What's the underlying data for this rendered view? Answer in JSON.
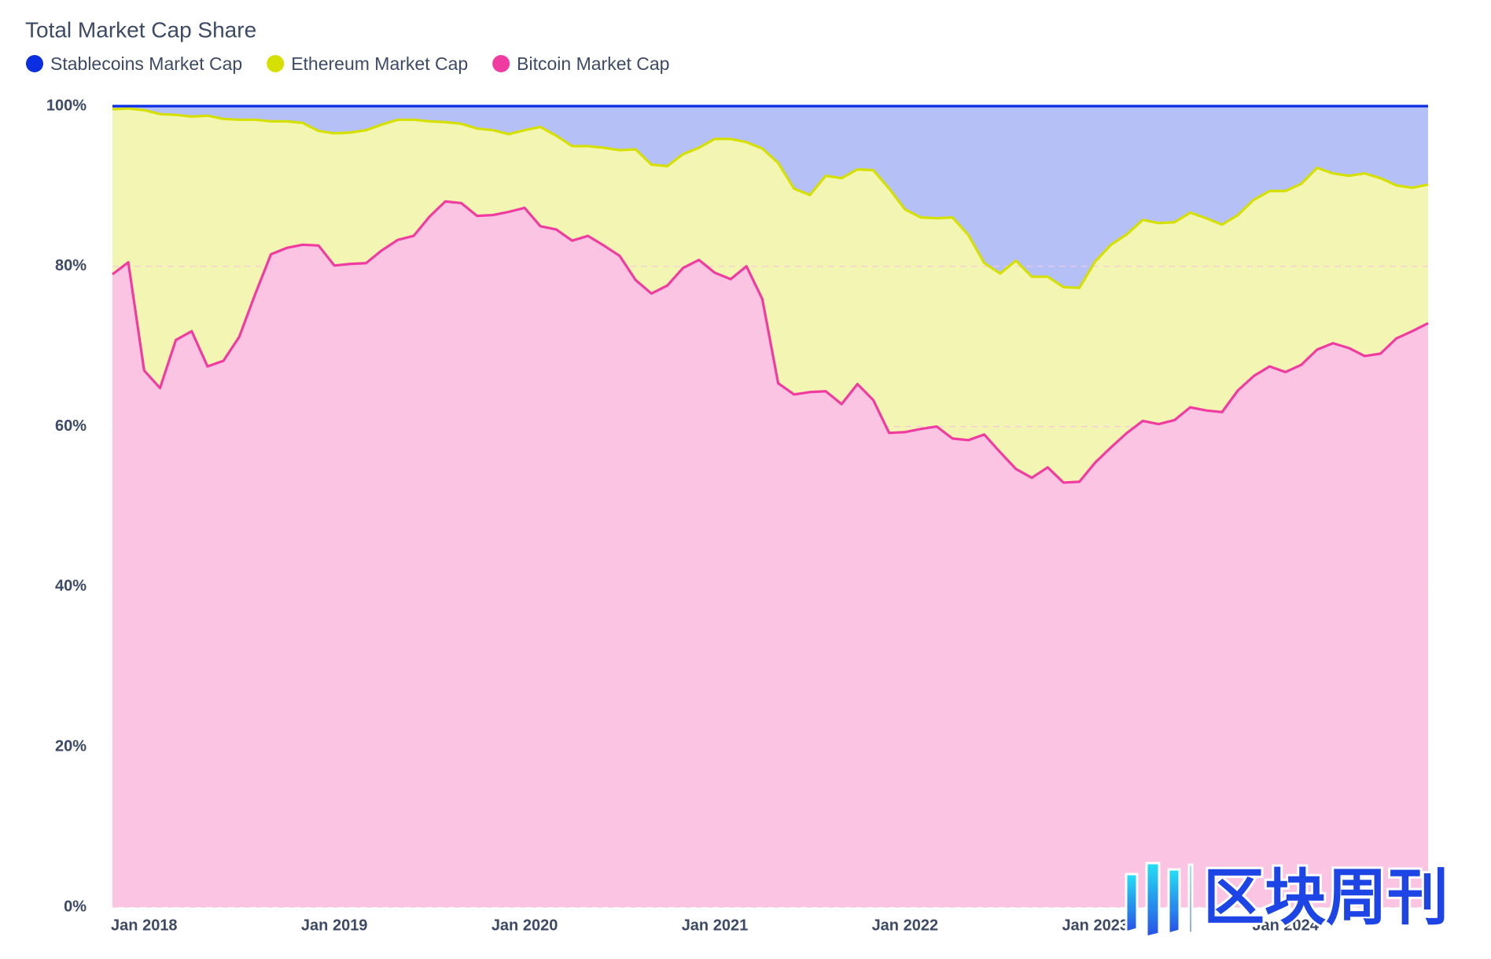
{
  "chart_data": {
    "type": "stacked-area",
    "title": "Total Market Cap Share",
    "watermark": "区块周刊",
    "x": [
      "2017-11",
      "2017-12",
      "2018-01",
      "2018-02",
      "2018-03",
      "2018-04",
      "2018-05",
      "2018-06",
      "2018-07",
      "2018-08",
      "2018-09",
      "2018-10",
      "2018-11",
      "2018-12",
      "2019-01",
      "2019-02",
      "2019-03",
      "2019-04",
      "2019-05",
      "2019-06",
      "2019-07",
      "2019-08",
      "2019-09",
      "2019-10",
      "2019-11",
      "2019-12",
      "2020-01",
      "2020-02",
      "2020-03",
      "2020-04",
      "2020-05",
      "2020-06",
      "2020-07",
      "2020-08",
      "2020-09",
      "2020-10",
      "2020-11",
      "2020-12",
      "2021-01",
      "2021-02",
      "2021-03",
      "2021-04",
      "2021-05",
      "2021-06",
      "2021-07",
      "2021-08",
      "2021-09",
      "2021-10",
      "2021-11",
      "2021-12",
      "2022-01",
      "2022-02",
      "2022-03",
      "2022-04",
      "2022-05",
      "2022-06",
      "2022-07",
      "2022-08",
      "2022-09",
      "2022-10",
      "2022-11",
      "2022-12",
      "2023-01",
      "2023-02",
      "2023-03",
      "2023-04",
      "2023-05",
      "2023-06",
      "2023-07",
      "2023-08",
      "2023-09",
      "2023-10",
      "2023-11",
      "2023-12",
      "2024-01",
      "2024-02",
      "2024-03",
      "2024-04",
      "2024-05",
      "2024-06",
      "2024-07",
      "2024-08",
      "2024-09",
      "2024-10"
    ],
    "xlim": [
      "2017-11",
      "2024-10"
    ],
    "xticks": [
      {
        "value": "2018-01",
        "label": "Jan 2018"
      },
      {
        "value": "2019-01",
        "label": "Jan 2019"
      },
      {
        "value": "2020-01",
        "label": "Jan 2020"
      },
      {
        "value": "2021-01",
        "label": "Jan 2021"
      },
      {
        "value": "2022-01",
        "label": "Jan 2022"
      },
      {
        "value": "2023-01",
        "label": "Jan 2023"
      },
      {
        "value": "2024-01",
        "label": "Jan 2024"
      }
    ],
    "ylim": [
      0,
      100
    ],
    "yticks": [
      {
        "value": 0,
        "label": "0%"
      },
      {
        "value": 20,
        "label": "20%"
      },
      {
        "value": 40,
        "label": "40%"
      },
      {
        "value": 60,
        "label": "60%"
      },
      {
        "value": 80,
        "label": "80%"
      },
      {
        "value": 100,
        "label": "100%"
      }
    ],
    "grid": true,
    "stacked": true,
    "series": [
      {
        "name": "Stablecoins Market Cap",
        "color": "#0a2ee0",
        "values": [
          0.4,
          0.3,
          0.5,
          1.0,
          1.1,
          1.3,
          1.2,
          1.6,
          1.7,
          1.7,
          1.9,
          1.9,
          2.1,
          3.1,
          3.4,
          3.3,
          3.0,
          2.3,
          1.7,
          1.7,
          1.9,
          2.0,
          2.2,
          2.8,
          3.0,
          3.5,
          3.0,
          2.6,
          3.7,
          5.0,
          5.0,
          5.2,
          5.5,
          5.4,
          7.3,
          7.5,
          6.0,
          5.2,
          4.1,
          4.1,
          4.5,
          5.3,
          7.1,
          10.3,
          11.1,
          8.7,
          9.0,
          7.9,
          8.0,
          10.3,
          12.9,
          13.9,
          14.0,
          13.9,
          16.1,
          19.6,
          20.9,
          19.3,
          21.3,
          21.3,
          22.6,
          22.7,
          19.4,
          17.3,
          16.0,
          14.2,
          14.6,
          14.5,
          13.3,
          14.0,
          14.8,
          13.6,
          11.7,
          10.6,
          10.6,
          9.7,
          7.7,
          8.4,
          8.7,
          8.4,
          9.0,
          9.9,
          10.2,
          9.8
        ]
      },
      {
        "name": "Ethereum Market Cap",
        "color": "#d6e000",
        "values": [
          20.6,
          19.2,
          32.5,
          34.2,
          28.1,
          26.8,
          31.3,
          30.2,
          27.1,
          21.8,
          16.6,
          15.8,
          15.2,
          14.3,
          16.5,
          16.4,
          16.6,
          15.7,
          15.0,
          14.5,
          11.9,
          9.9,
          9.9,
          10.9,
          10.6,
          9.7,
          9.7,
          12.4,
          11.7,
          11.8,
          11.2,
          12.2,
          13.2,
          16.3,
          16.1,
          14.9,
          14.2,
          14.0,
          16.7,
          17.5,
          15.5,
          18.8,
          27.5,
          25.7,
          24.6,
          26.9,
          28.2,
          26.8,
          28.7,
          30.5,
          27.8,
          26.4,
          26.0,
          27.6,
          25.6,
          21.4,
          22.3,
          26.0,
          25.1,
          23.8,
          24.4,
          24.2,
          25.1,
          25.3,
          24.8,
          25.1,
          25.1,
          24.7,
          24.3,
          24.0,
          23.4,
          21.9,
          22.0,
          21.9,
          22.6,
          22.6,
          22.7,
          21.2,
          21.5,
          22.8,
          21.9,
          19.1,
          17.9,
          17.3
        ]
      },
      {
        "name": "Bitcoin Market Cap",
        "color": "#f03ca0",
        "values": [
          79.0,
          80.5,
          67.0,
          64.8,
          70.8,
          71.9,
          67.5,
          68.2,
          71.2,
          76.5,
          81.5,
          82.3,
          82.7,
          82.6,
          80.1,
          80.3,
          80.4,
          82.0,
          83.3,
          83.8,
          86.2,
          88.1,
          87.9,
          86.3,
          86.4,
          86.8,
          87.3,
          85.0,
          84.6,
          83.2,
          83.8,
          82.6,
          81.3,
          78.3,
          76.6,
          77.6,
          79.8,
          80.8,
          79.2,
          78.4,
          80.0,
          75.9,
          65.4,
          64.0,
          64.3,
          64.4,
          62.8,
          65.3,
          63.3,
          59.2,
          59.3,
          59.7,
          60.0,
          58.5,
          58.3,
          59.0,
          56.8,
          54.7,
          53.6,
          54.9,
          53.0,
          53.1,
          55.5,
          57.4,
          59.2,
          60.7,
          60.3,
          60.8,
          62.4,
          62.0,
          61.8,
          64.5,
          66.3,
          67.5,
          66.8,
          67.7,
          69.6,
          70.4,
          69.8,
          68.8,
          69.1,
          71.0,
          71.9,
          72.9
        ]
      }
    ]
  }
}
